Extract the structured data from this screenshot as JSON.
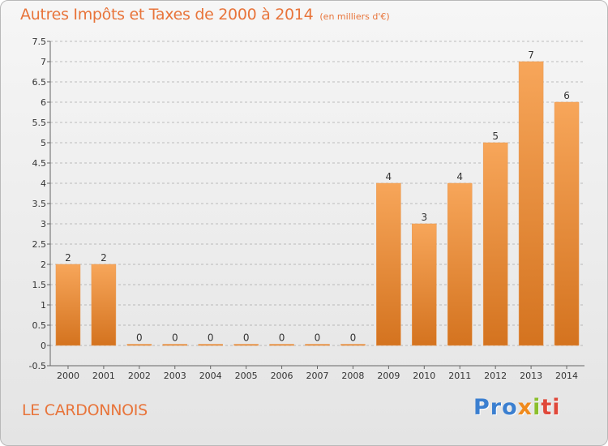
{
  "header": {
    "title": "Autres Impôts et Taxes de 2000 à 2014",
    "unit": "(en milliers d'€)"
  },
  "footer": {
    "commune": "LE CARDONNOIS",
    "logo": [
      "Pro",
      "x",
      "i",
      "ti"
    ]
  },
  "colors": {
    "accent": "#e8743a",
    "bar_light": "#f7a65a",
    "bar_dark": "#d4731f",
    "grid": "#999999"
  },
  "chart_data": {
    "type": "bar",
    "title": "Autres Impôts et Taxes de 2000 à 2014",
    "categories": [
      "2000",
      "2001",
      "2002",
      "2003",
      "2004",
      "2005",
      "2006",
      "2007",
      "2008",
      "2009",
      "2010",
      "2011",
      "2012",
      "2013",
      "2014"
    ],
    "values": [
      2,
      2,
      0,
      0,
      0,
      0,
      0,
      0,
      0,
      4,
      3,
      4,
      5,
      7,
      6
    ],
    "data_labels": [
      "2",
      "2",
      "0",
      "0",
      "0",
      "0",
      "0",
      "0",
      "0",
      "4",
      "3",
      "4",
      "5",
      "7",
      "6"
    ],
    "yticks": [
      "7.5",
      "7",
      "6.5",
      "6",
      "5.5",
      "5",
      "4.5",
      "4",
      "3.5",
      "3",
      "2.5",
      "2",
      "1.5",
      "1",
      "0.5",
      "0",
      "-0.5"
    ],
    "ylim": [
      -0.5,
      7.5
    ],
    "grid": "dashed horizontal",
    "legend": "none"
  }
}
